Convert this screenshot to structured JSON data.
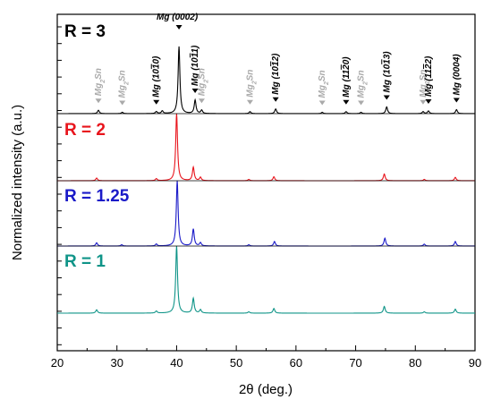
{
  "chart_data": {
    "type": "line",
    "xlabel": "2θ (deg.)",
    "ylabel": "Normalized intensity (a.u.)",
    "xlim": [
      20,
      90
    ],
    "x_ticks": [
      "20",
      "30",
      "40",
      "50",
      "60",
      "70",
      "80",
      "90"
    ],
    "colors": {
      "R3": "#000000",
      "R2": "#e8141c",
      "R125": "#1a1ac8",
      "R1": "#0f9488",
      "secondary": "#aaaaaa"
    },
    "series": [
      {
        "name": "R = 3",
        "color": "#000000",
        "peaks": [
          {
            "x": 26.9,
            "h": 0.05
          },
          {
            "x": 30.9,
            "h": 0.02
          },
          {
            "x": 36.6,
            "h": 0.03
          },
          {
            "x": 37.6,
            "h": 0.04
          },
          {
            "x": 40.4,
            "h": 1.0
          },
          {
            "x": 43.1,
            "h": 0.2
          },
          {
            "x": 44.2,
            "h": 0.05
          },
          {
            "x": 52.3,
            "h": 0.03
          },
          {
            "x": 56.6,
            "h": 0.07
          },
          {
            "x": 64.4,
            "h": 0.02
          },
          {
            "x": 68.4,
            "h": 0.03
          },
          {
            "x": 70.9,
            "h": 0.02
          },
          {
            "x": 75.2,
            "h": 0.1
          },
          {
            "x": 81.3,
            "h": 0.03
          },
          {
            "x": 82.2,
            "h": 0.04
          },
          {
            "x": 86.9,
            "h": 0.06
          }
        ]
      },
      {
        "name": "R = 2",
        "color": "#e8141c",
        "peaks": [
          {
            "x": 26.6,
            "h": 0.04
          },
          {
            "x": 36.6,
            "h": 0.03
          },
          {
            "x": 40.0,
            "h": 1.0
          },
          {
            "x": 42.8,
            "h": 0.2
          },
          {
            "x": 44.0,
            "h": 0.05
          },
          {
            "x": 52.1,
            "h": 0.02
          },
          {
            "x": 56.3,
            "h": 0.06
          },
          {
            "x": 74.8,
            "h": 0.1
          },
          {
            "x": 81.5,
            "h": 0.02
          },
          {
            "x": 86.7,
            "h": 0.05
          }
        ]
      },
      {
        "name": "R = 1.25",
        "color": "#1a1ac8",
        "peaks": [
          {
            "x": 26.6,
            "h": 0.05
          },
          {
            "x": 30.8,
            "h": 0.02
          },
          {
            "x": 36.6,
            "h": 0.03
          },
          {
            "x": 40.1,
            "h": 1.0
          },
          {
            "x": 42.8,
            "h": 0.26
          },
          {
            "x": 44.0,
            "h": 0.05
          },
          {
            "x": 52.1,
            "h": 0.02
          },
          {
            "x": 56.4,
            "h": 0.07
          },
          {
            "x": 74.9,
            "h": 0.12
          },
          {
            "x": 81.5,
            "h": 0.03
          },
          {
            "x": 86.7,
            "h": 0.07
          }
        ]
      },
      {
        "name": "R = 1",
        "color": "#0f9488",
        "peaks": [
          {
            "x": 26.6,
            "h": 0.05
          },
          {
            "x": 36.6,
            "h": 0.03
          },
          {
            "x": 40.0,
            "h": 1.0
          },
          {
            "x": 42.8,
            "h": 0.22
          },
          {
            "x": 44.0,
            "h": 0.05
          },
          {
            "x": 52.1,
            "h": 0.02
          },
          {
            "x": 56.3,
            "h": 0.07
          },
          {
            "x": 74.8,
            "h": 0.1
          },
          {
            "x": 81.5,
            "h": 0.02
          },
          {
            "x": 86.7,
            "h": 0.06
          }
        ]
      }
    ],
    "peak_labels": [
      {
        "x": 26.9,
        "phase": "Mg2Sn",
        "text": "Mg",
        "sub": "2",
        "tail": "Sn",
        "primary": false
      },
      {
        "x": 30.9,
        "phase": "Mg2Sn",
        "text": "Mg",
        "sub": "2",
        "tail": "Sn",
        "primary": false
      },
      {
        "x": 36.6,
        "phase": "Mg (10-10)",
        "text": "Mg (10",
        "over": "1",
        "tail": "0)",
        "primary": true
      },
      {
        "x": 40.4,
        "phase": "Mg (0002)",
        "text": "Mg (0002)",
        "primary": true
      },
      {
        "x": 43.1,
        "phase": "Mg (10-11)",
        "text": "Mg (10",
        "over": "1",
        "tail": "1)",
        "primary": true
      },
      {
        "x": 44.2,
        "phase": "Mg2Sn",
        "text": "Mg",
        "sub": "2",
        "tail": "Sn",
        "primary": false
      },
      {
        "x": 52.3,
        "phase": "Mg2Sn",
        "text": "Mg",
        "sub": "2",
        "tail": "Sn",
        "primary": false
      },
      {
        "x": 56.6,
        "phase": "Mg (10-12)",
        "text": "Mg (10",
        "over": "1",
        "tail": "2)",
        "primary": true
      },
      {
        "x": 64.4,
        "phase": "Mg2Sn",
        "text": "Mg",
        "sub": "2",
        "tail": "Sn",
        "primary": false
      },
      {
        "x": 68.4,
        "phase": "Mg (11-20)",
        "text": "Mg (11",
        "over": "2",
        "tail": "0)",
        "primary": true
      },
      {
        "x": 70.9,
        "phase": "Mg2Sn",
        "text": "Mg",
        "sub": "2",
        "tail": "Sn",
        "primary": false
      },
      {
        "x": 75.2,
        "phase": "Mg (10-13)",
        "text": "Mg (10",
        "over": "1",
        "tail": "3)",
        "primary": true
      },
      {
        "x": 81.3,
        "phase": "Mg2Sn",
        "text": "Mg",
        "sub": "2",
        "tail": "Sn",
        "primary": false
      },
      {
        "x": 82.2,
        "phase": "Mg (11-22)",
        "text": "Mg (11",
        "over": "2",
        "tail": "2)",
        "primary": true
      },
      {
        "x": 86.9,
        "phase": "Mg (0004)",
        "text": "Mg (0004)",
        "primary": true
      }
    ]
  }
}
